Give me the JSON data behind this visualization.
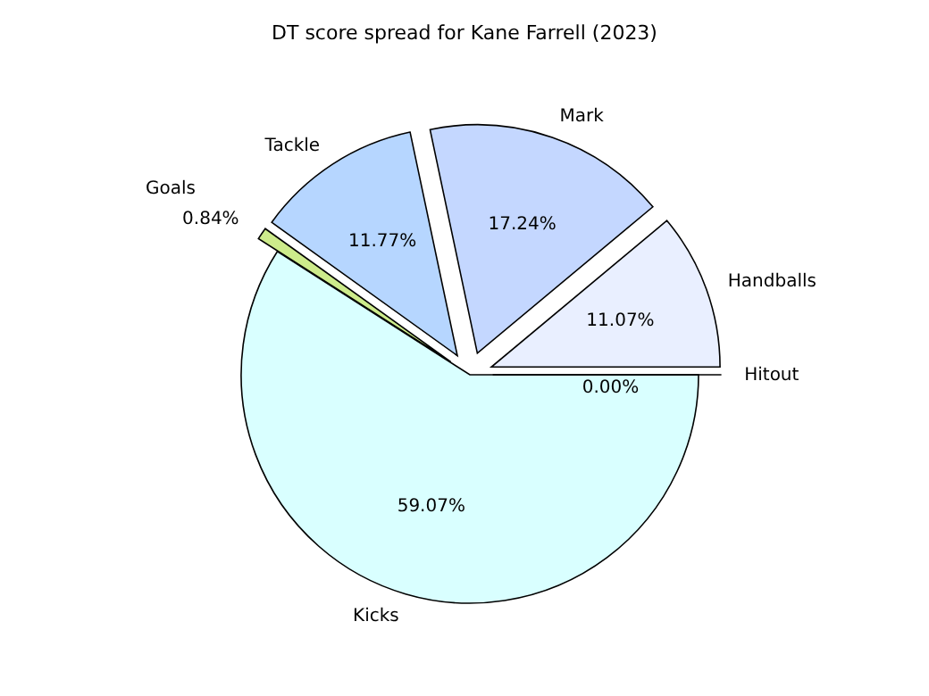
{
  "chart_data": {
    "type": "pie",
    "title": "DT score spread for Kane Farrell (2023)",
    "categories": [
      "Handballs",
      "Mark",
      "Tackle",
      "Goals",
      "Kicks",
      "Hitout"
    ],
    "values": [
      11.07,
      17.24,
      11.77,
      0.84,
      59.07,
      0.0
    ],
    "colors": [
      "#e9efff",
      "#c4d7ff",
      "#b6d6ff",
      "#cdeb8b",
      "#d9ffff",
      "#f0f0f0"
    ],
    "value_labels": [
      "11.07%",
      "17.24%",
      "11.77%",
      "0.84%",
      "59.07%",
      "0.00%"
    ]
  }
}
